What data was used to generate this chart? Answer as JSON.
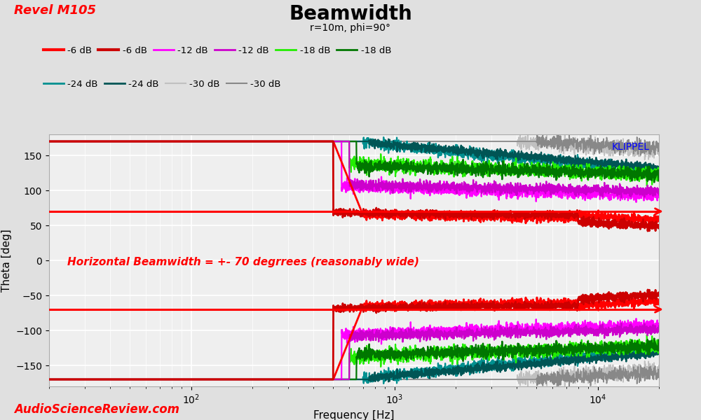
{
  "title": "Beamwidth",
  "subtitle": "r=10m, phi=90°",
  "top_left_label": "Revel M105",
  "bottom_left_label": "AudioScienceReview.com",
  "xlabel": "Frequency [Hz]",
  "ylabel": "Theta [deg]",
  "watermark": "KLIPPEL",
  "annotation": "Horizontal Beamwidth = +- 70 degrrees (reasonably wide)",
  "annotation_color": "#ff0000",
  "xlim": [
    20,
    20000
  ],
  "ylim": [
    -180,
    180
  ],
  "yticks": [
    -150,
    -100,
    -50,
    0,
    50,
    100,
    150
  ],
  "col_6a": "#ff0000",
  "col_6b": "#cc0000",
  "col_12a": "#ff00ff",
  "col_12b": "#cc00cc",
  "col_18a": "#22ee00",
  "col_18b": "#007700",
  "col_24a": "#009090",
  "col_24b": "#005555",
  "col_30a": "#c0c0c0",
  "col_30b": "#888888",
  "hline_pos": 70,
  "hline_neg": -70,
  "hline_color": "#ff0000",
  "bg_color": "#efefef",
  "grid_color": "#ffffff",
  "title_fontsize": 20,
  "label_fontsize": 11
}
